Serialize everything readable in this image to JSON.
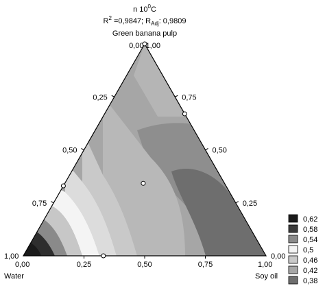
{
  "chart_data": {
    "type": "ternary-contour",
    "title": "n 10",
    "title_sup": "0",
    "title_unit": "C",
    "stats": {
      "r2_prefix": "R",
      "r2_sup": "2",
      "r2_value": " =0,9847; R",
      "radj_sub": "Adj",
      "radj_value": ": 0,9809"
    },
    "components": {
      "top": "Green banana pulp",
      "left": "Water",
      "right": "Soy oil"
    },
    "corner_labels": {
      "top": "0,00  1,00",
      "left": "1,00",
      "left_bottom": "0,00",
      "right": "0,00",
      "right_bottom": "1,00"
    },
    "axis_ticks": {
      "bottom": [
        "0,25",
        "0,50",
        "0,75"
      ],
      "left": [
        "0,75",
        "0,50",
        "0,25"
      ],
      "right": [
        "0,75",
        "0,50",
        "0,25"
      ]
    },
    "legend": [
      {
        "label": "0,62",
        "color": "#1a1a1a"
      },
      {
        "label": "0,58",
        "color": "#3a3a3a"
      },
      {
        "label": "0,54",
        "color": "#8a8a8a"
      },
      {
        "label": "0,5",
        "color": "#f4f4f4"
      },
      {
        "label": "0,46",
        "color": "#c9c9c9"
      },
      {
        "label": "0,42",
        "color": "#a6a6a6"
      },
      {
        "label": "0,38",
        "color": "#6e6e6e"
      }
    ],
    "design_points": [
      {
        "water": 0.0,
        "soy_oil": 0.0,
        "pulp": 1.0
      },
      {
        "water": 0.0,
        "soy_oil": 0.33,
        "pulp": 0.67
      },
      {
        "water": 0.67,
        "soy_oil": 0.0,
        "pulp": 0.33
      },
      {
        "water": 0.67,
        "soy_oil": 0.33,
        "pulp": 0.0
      },
      {
        "water": 0.33,
        "soy_oil": 0.33,
        "pulp": 0.33
      }
    ]
  }
}
